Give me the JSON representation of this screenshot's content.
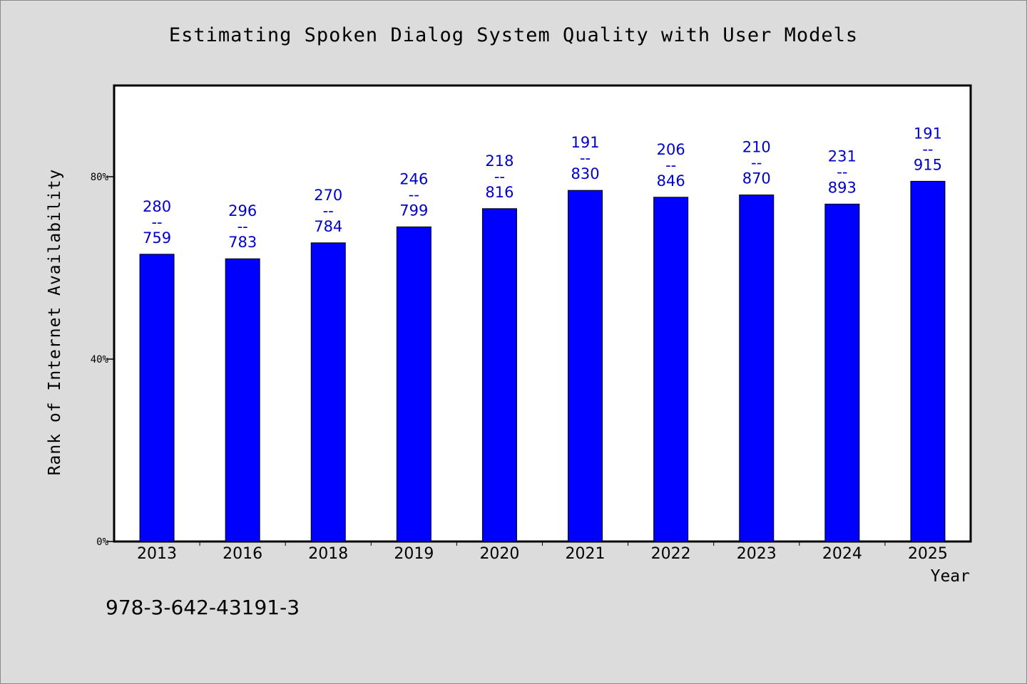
{
  "chart_data": {
    "type": "bar",
    "title": "Estimating Spoken Dialog System Quality with User Models",
    "xlabel": "Year",
    "ylabel": "Rank of Internet Availability",
    "ylim": [
      0,
      100
    ],
    "y_ticks": [
      {
        "value": 0,
        "label": "0%"
      },
      {
        "value": 40,
        "label": "40%"
      },
      {
        "value": 80,
        "label": "80%"
      }
    ],
    "categories": [
      "2013",
      "2016",
      "2018",
      "2019",
      "2020",
      "2021",
      "2022",
      "2023",
      "2024",
      "2025"
    ],
    "series": [
      {
        "values": [
          63.0,
          62.0,
          65.5,
          69.0,
          73.0,
          77.0,
          75.5,
          76.0,
          74.0,
          79.0
        ],
        "color": "#0000ff",
        "labels": [
          [
            "280",
            "--",
            "759"
          ],
          [
            "296",
            "--",
            "783"
          ],
          [
            "270",
            "--",
            "784"
          ],
          [
            "246",
            "--",
            "799"
          ],
          [
            "218",
            "--",
            "816"
          ],
          [
            "191",
            "--",
            "830"
          ],
          [
            "206",
            "--",
            "846"
          ],
          [
            "210",
            "--",
            "870"
          ],
          [
            "231",
            "--",
            "893"
          ],
          [
            "191",
            "--",
            "915"
          ]
        ]
      }
    ],
    "grid": false,
    "legend": "none"
  },
  "footnote": "978-3-642-43191-3",
  "colors": {
    "background": "#dcdcdc",
    "plot_background": "#ffffff",
    "bar": "#0000ff",
    "data_label": "#0000cc"
  }
}
